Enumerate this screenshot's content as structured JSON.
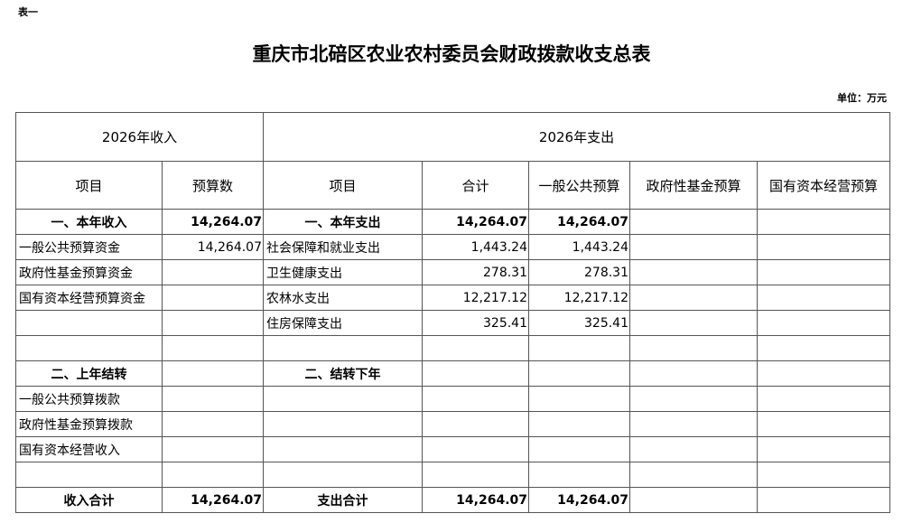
{
  "label": "表一",
  "title": "重庆市北碚区农业农村委员会财政拨款收支总表",
  "unit": "单位：万元",
  "header": {
    "income": "2026年收入",
    "expense": "2026年支出",
    "cols": [
      "项目",
      "预算数",
      "项目",
      "合计",
      "一般公共预算",
      "政府性基金预算",
      "国有资本经营预算"
    ]
  },
  "rows": [
    {
      "bold": true,
      "c": [
        "一、本年收入",
        "14,264.07",
        "一、本年支出",
        "14,264.07",
        "14,264.07",
        "",
        ""
      ]
    },
    {
      "c": [
        "一般公共预算资金",
        "14,264.07",
        "社会保障和就业支出",
        "1,443.24",
        "1,443.24",
        "",
        ""
      ]
    },
    {
      "c": [
        "政府性基金预算资金",
        "",
        "卫生健康支出",
        "278.31",
        "278.31",
        "",
        ""
      ]
    },
    {
      "c": [
        "国有资本经营预算资金",
        "",
        "农林水支出",
        "12,217.12",
        "12,217.12",
        "",
        ""
      ]
    },
    {
      "c": [
        "",
        "",
        "住房保障支出",
        "325.41",
        "325.41",
        "",
        ""
      ]
    },
    {
      "c": [
        "",
        "",
        "",
        "",
        "",
        "",
        ""
      ]
    },
    {
      "bold": true,
      "c": [
        "二、上年结转",
        "",
        "二、结转下年",
        "",
        "",
        "",
        ""
      ]
    },
    {
      "c": [
        "一般公共预算拨款",
        "",
        "",
        "",
        "",
        "",
        ""
      ]
    },
    {
      "c": [
        "政府性基金预算拨款",
        "",
        "",
        "",
        "",
        "",
        ""
      ]
    },
    {
      "c": [
        "国有资本经营收入",
        "",
        "",
        "",
        "",
        "",
        ""
      ]
    },
    {
      "c": [
        "",
        "",
        "",
        "",
        "",
        "",
        ""
      ]
    },
    {
      "bold": true,
      "c": [
        "收入合计",
        "14,264.07",
        "支出合计",
        "14,264.07",
        "14,264.07",
        "",
        ""
      ]
    }
  ]
}
